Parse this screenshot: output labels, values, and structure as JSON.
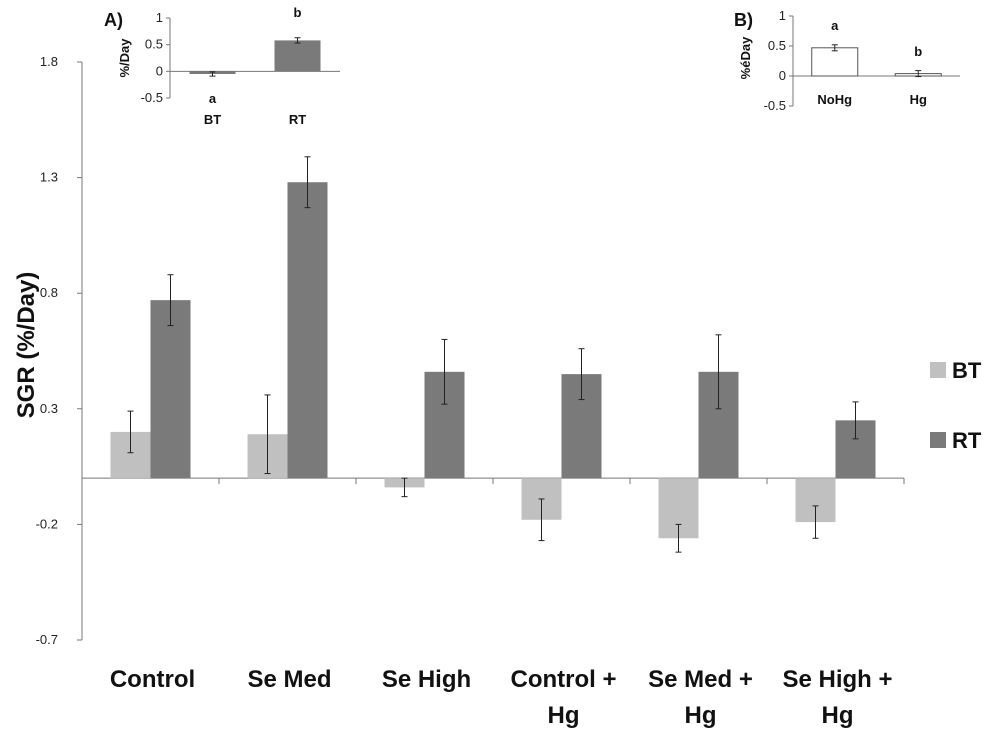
{
  "colors": {
    "BT": "#c0c0c0",
    "RT": "#7a7a7a",
    "B_bar": "#ffffff",
    "axis": "#777777",
    "error": "#222222"
  },
  "chart_data": [
    {
      "type": "bar",
      "ylabel": "SGR (%/Day)",
      "ylim": [
        -0.7,
        1.8
      ],
      "yticks": [
        "1.8",
        "1.3",
        "0.8",
        "0.3",
        "-0.2",
        "-0.7"
      ],
      "categories": [
        [
          "Control"
        ],
        [
          "Se Med"
        ],
        [
          "Se High"
        ],
        [
          "Control +",
          "Hg"
        ],
        [
          "Se Med +",
          "Hg"
        ],
        [
          "Se High +",
          "Hg"
        ]
      ],
      "series": [
        {
          "name": "BT",
          "values": [
            0.2,
            0.19,
            -0.04,
            -0.18,
            -0.26,
            -0.19
          ],
          "errors": [
            0.09,
            0.17,
            0.04,
            0.09,
            0.06,
            0.07
          ]
        },
        {
          "name": "RT",
          "values": [
            0.77,
            1.28,
            0.46,
            0.45,
            0.46,
            0.25
          ],
          "errors": [
            0.11,
            0.11,
            0.14,
            0.11,
            0.16,
            0.08
          ]
        }
      ],
      "legend": "right",
      "grid": false
    },
    {
      "type": "bar",
      "panel": "A)",
      "ylabel": "%/Day",
      "ylim": [
        -0.5,
        1
      ],
      "yticks": [
        "1",
        "0.5",
        "0",
        "-0.5"
      ],
      "categories": [
        "BT",
        "RT"
      ],
      "values": [
        -0.05,
        0.58
      ],
      "errors": [
        0.04,
        0.05
      ],
      "letters": [
        "a",
        "b"
      ]
    },
    {
      "type": "bar",
      "panel": "B)",
      "ylabel": "%éDay",
      "ylim": [
        -0.5,
        1
      ],
      "yticks": [
        "1",
        "0.5",
        "0",
        "-0.5"
      ],
      "categories": [
        "NoHg",
        "Hg"
      ],
      "values": [
        0.47,
        0.04
      ],
      "errors": [
        0.05,
        0.05
      ],
      "letters": [
        "a",
        "b"
      ]
    }
  ]
}
